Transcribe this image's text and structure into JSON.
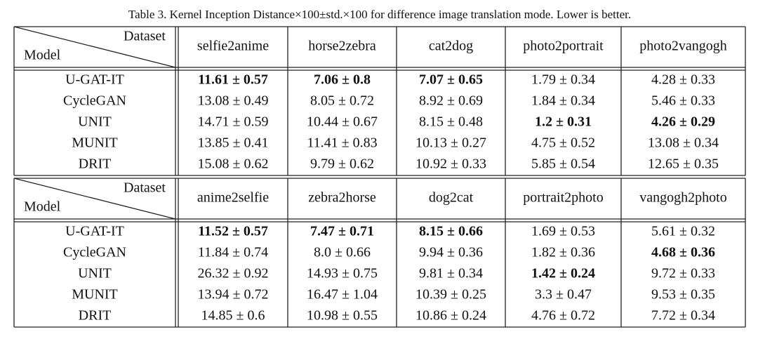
{
  "caption": "Table 3. Kernel Inception Distance×100±std.×100 for difference image translation mode. Lower is better.",
  "blocks": [
    {
      "header": {
        "col_label": "Dataset",
        "row_label": "Model",
        "columns": [
          "selfie2anime",
          "horse2zebra",
          "cat2dog",
          "photo2portrait",
          "photo2vangogh"
        ]
      },
      "rows": [
        {
          "model": "U-GAT-IT",
          "cells": [
            {
              "text": "11.61 ± 0.57",
              "bold": true
            },
            {
              "text": "7.06 ± 0.8",
              "bold": true
            },
            {
              "text": "7.07 ± 0.65",
              "bold": true
            },
            {
              "text": "1.79 ± 0.34",
              "bold": false
            },
            {
              "text": "4.28 ± 0.33",
              "bold": false
            }
          ]
        },
        {
          "model": "CycleGAN",
          "cells": [
            {
              "text": "13.08 ± 0.49",
              "bold": false
            },
            {
              "text": "8.05 ± 0.72",
              "bold": false
            },
            {
              "text": "8.92 ± 0.69",
              "bold": false
            },
            {
              "text": "1.84 ± 0.34",
              "bold": false
            },
            {
              "text": "5.46 ± 0.33",
              "bold": false
            }
          ]
        },
        {
          "model": "UNIT",
          "cells": [
            {
              "text": "14.71 ± 0.59",
              "bold": false
            },
            {
              "text": "10.44 ± 0.67",
              "bold": false
            },
            {
              "text": "8.15 ± 0.48",
              "bold": false
            },
            {
              "text": "1.2 ± 0.31",
              "bold": true
            },
            {
              "text": "4.26 ± 0.29",
              "bold": true
            }
          ]
        },
        {
          "model": "MUNIT",
          "cells": [
            {
              "text": "13.85 ± 0.41",
              "bold": false
            },
            {
              "text": "11.41 ± 0.83",
              "bold": false
            },
            {
              "text": "10.13 ± 0.27",
              "bold": false
            },
            {
              "text": "4.75 ± 0.52",
              "bold": false
            },
            {
              "text": "13.08 ± 0.34",
              "bold": false
            }
          ]
        },
        {
          "model": "DRIT",
          "cells": [
            {
              "text": "15.08 ± 0.62",
              "bold": false
            },
            {
              "text": "9.79 ± 0.62",
              "bold": false
            },
            {
              "text": "10.92 ± 0.33",
              "bold": false
            },
            {
              "text": "5.85 ± 0.54",
              "bold": false
            },
            {
              "text": "12.65 ± 0.35",
              "bold": false
            }
          ]
        }
      ]
    },
    {
      "header": {
        "col_label": "Dataset",
        "row_label": "Model",
        "columns": [
          "anime2selfie",
          "zebra2horse",
          "dog2cat",
          "portrait2photo",
          "vangogh2photo"
        ]
      },
      "rows": [
        {
          "model": "U-GAT-IT",
          "cells": [
            {
              "text": "11.52 ± 0.57",
              "bold": true
            },
            {
              "text": "7.47 ± 0.71",
              "bold": true
            },
            {
              "text": "8.15 ± 0.66",
              "bold": true
            },
            {
              "text": "1.69 ± 0.53",
              "bold": false
            },
            {
              "text": "5.61 ± 0.32",
              "bold": false
            }
          ]
        },
        {
          "model": "CycleGAN",
          "cells": [
            {
              "text": "11.84 ± 0.74",
              "bold": false
            },
            {
              "text": "8.0 ± 0.66",
              "bold": false
            },
            {
              "text": "9.94 ± 0.36",
              "bold": false
            },
            {
              "text": "1.82 ± 0.36",
              "bold": false
            },
            {
              "text": "4.68 ± 0.36",
              "bold": true
            }
          ]
        },
        {
          "model": "UNIT",
          "cells": [
            {
              "text": "26.32 ± 0.92",
              "bold": false
            },
            {
              "text": "14.93 ± 0.75",
              "bold": false
            },
            {
              "text": "9.81 ± 0.34",
              "bold": false
            },
            {
              "text": "1.42 ± 0.24",
              "bold": true
            },
            {
              "text": "9.72 ± 0.33",
              "bold": false
            }
          ]
        },
        {
          "model": "MUNIT",
          "cells": [
            {
              "text": "13.94 ± 0.72",
              "bold": false
            },
            {
              "text": "16.47 ± 1.04",
              "bold": false
            },
            {
              "text": "10.39 ± 0.25",
              "bold": false
            },
            {
              "text": "3.3 ± 0.47",
              "bold": false
            },
            {
              "text": "9.53 ± 0.35",
              "bold": false
            }
          ]
        },
        {
          "model": "DRIT",
          "cells": [
            {
              "text": "14.85 ± 0.6",
              "bold": false
            },
            {
              "text": "10.98 ± 0.55",
              "bold": false
            },
            {
              "text": "10.86 ± 0.24",
              "bold": false
            },
            {
              "text": "4.76 ± 0.72",
              "bold": false
            },
            {
              "text": "7.72 ± 0.34",
              "bold": false
            }
          ]
        }
      ]
    }
  ]
}
